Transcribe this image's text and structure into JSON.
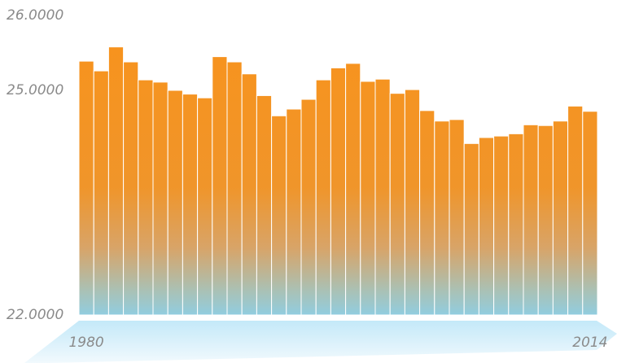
{
  "chart_data": {
    "type": "bar",
    "categories": [
      "1980",
      null,
      null,
      null,
      null,
      null,
      null,
      null,
      null,
      null,
      null,
      null,
      null,
      null,
      null,
      null,
      null,
      null,
      null,
      null,
      null,
      null,
      null,
      null,
      null,
      null,
      null,
      null,
      null,
      null,
      null,
      null,
      null,
      null,
      "2014"
    ],
    "values": [
      25.39,
      25.26,
      25.58,
      25.38,
      25.14,
      25.11,
      25.0,
      24.95,
      24.9,
      25.45,
      25.38,
      25.22,
      24.93,
      24.66,
      24.75,
      24.88,
      25.14,
      25.3,
      25.36,
      25.12,
      25.15,
      24.96,
      25.01,
      24.73,
      24.59,
      24.61,
      24.29,
      24.37,
      24.39,
      24.42,
      24.54,
      24.53,
      24.59,
      24.79,
      24.72
    ],
    "ylim": [
      22,
      26
    ],
    "yticks": [
      {
        "value": 22,
        "label": "22.0000"
      },
      {
        "value": 25,
        "label": "25.0000"
      },
      {
        "value": 26,
        "label": "26.0000"
      }
    ]
  }
}
